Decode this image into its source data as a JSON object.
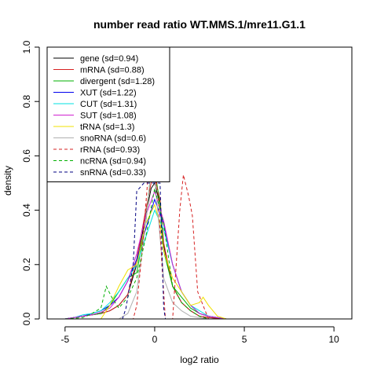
{
  "chart_data": {
    "type": "line",
    "title": "number read ratio WT.MMS.1/mre11.G1.1",
    "xlabel": "log2 ratio",
    "ylabel": "density",
    "xlim": [
      -6,
      11
    ],
    "ylim": [
      0,
      1.0
    ],
    "x_ticks": [
      -5,
      0,
      5,
      10
    ],
    "y_ticks": [
      0.0,
      0.2,
      0.4,
      0.6,
      0.8,
      1.0
    ],
    "grid": false,
    "legend_position": "top-left",
    "series": [
      {
        "name": "gene (sd=0.94)",
        "color": "#000000",
        "dash": "solid",
        "x": [
          -5.0,
          -4.0,
          -3.0,
          -2.5,
          -2.0,
          -1.5,
          -1.0,
          -0.5,
          -0.2,
          0.0,
          0.3,
          0.5,
          1.0,
          1.5,
          2.0,
          2.5,
          3.0,
          4.0,
          5.0,
          10.4
        ],
        "y": [
          0.0,
          0.01,
          0.02,
          0.03,
          0.05,
          0.09,
          0.2,
          0.38,
          0.48,
          0.5,
          0.42,
          0.27,
          0.12,
          0.06,
          0.03,
          0.01,
          0.005,
          0.0,
          0.0,
          0.0
        ]
      },
      {
        "name": "mRNA (sd=0.88)",
        "color": "#d62020",
        "dash": "solid",
        "x": [
          -5.0,
          -4.0,
          -3.0,
          -2.5,
          -2.0,
          -1.5,
          -1.0,
          -0.5,
          -0.2,
          0.0,
          0.3,
          0.5,
          1.0,
          1.5,
          2.0,
          2.5,
          3.0,
          4.0,
          5.0,
          10.4
        ],
        "y": [
          0.0,
          0.01,
          0.02,
          0.03,
          0.05,
          0.09,
          0.22,
          0.4,
          0.5,
          0.52,
          0.44,
          0.28,
          0.12,
          0.06,
          0.03,
          0.01,
          0.005,
          0.0,
          0.0,
          0.0
        ]
      },
      {
        "name": "divergent (sd=1.28)",
        "color": "#00b000",
        "dash": "solid",
        "x": [
          -5.0,
          -4.0,
          -3.0,
          -2.5,
          -2.0,
          -1.5,
          -1.0,
          -0.5,
          -0.2,
          0.0,
          0.3,
          0.5,
          1.0,
          1.5,
          2.0,
          2.5,
          3.0,
          4.0,
          5.0,
          10.4
        ],
        "y": [
          0.0,
          0.01,
          0.02,
          0.05,
          0.1,
          0.15,
          0.17,
          0.35,
          0.55,
          0.55,
          0.42,
          0.25,
          0.12,
          0.08,
          0.04,
          0.02,
          0.01,
          0.0,
          0.0,
          0.0
        ]
      },
      {
        "name": "XUT (sd=1.22)",
        "color": "#0000ee",
        "dash": "solid",
        "x": [
          -5.0,
          -4.5,
          -4.0,
          -3.5,
          -3.0,
          -2.5,
          -2.0,
          -1.5,
          -1.0,
          -0.5,
          0.0,
          0.5,
          1.0,
          1.5,
          2.0,
          2.5,
          3.0,
          3.5,
          4.0,
          5.0,
          10.4
        ],
        "y": [
          0.0,
          0.005,
          0.01,
          0.02,
          0.03,
          0.05,
          0.08,
          0.14,
          0.22,
          0.33,
          0.44,
          0.35,
          0.2,
          0.1,
          0.05,
          0.02,
          0.01,
          0.005,
          0.0,
          0.0,
          0.0
        ]
      },
      {
        "name": "CUT (sd=1.31)",
        "color": "#00e0e0",
        "dash": "solid",
        "x": [
          -5.0,
          -4.5,
          -4.0,
          -3.5,
          -3.0,
          -2.5,
          -2.0,
          -1.5,
          -1.0,
          -0.5,
          0.0,
          0.5,
          1.0,
          1.5,
          2.0,
          2.5,
          3.0,
          3.5,
          4.0,
          5.0,
          10.4
        ],
        "y": [
          0.0,
          0.005,
          0.015,
          0.02,
          0.03,
          0.06,
          0.1,
          0.15,
          0.2,
          0.3,
          0.4,
          0.33,
          0.2,
          0.1,
          0.05,
          0.03,
          0.01,
          0.005,
          0.0,
          0.0,
          0.0
        ]
      },
      {
        "name": "SUT (sd=1.08)",
        "color": "#d020d0",
        "dash": "solid",
        "x": [
          -5.0,
          -4.5,
          -4.0,
          -3.5,
          -3.0,
          -2.5,
          -2.0,
          -1.5,
          -1.0,
          -0.5,
          0.0,
          0.5,
          1.0,
          1.5,
          2.0,
          2.5,
          3.0,
          3.5,
          4.0,
          5.0,
          10.4
        ],
        "y": [
          0.0,
          0.005,
          0.01,
          0.015,
          0.025,
          0.04,
          0.08,
          0.14,
          0.24,
          0.38,
          0.47,
          0.36,
          0.2,
          0.1,
          0.05,
          0.02,
          0.01,
          0.005,
          0.0,
          0.0,
          0.0
        ]
      },
      {
        "name": "tRNA (sd=1.3)",
        "color": "#f0e000",
        "dash": "solid",
        "x": [
          -5.0,
          -3.0,
          -2.5,
          -2.0,
          -1.5,
          -1.0,
          -0.5,
          0.0,
          0.3,
          0.5,
          1.0,
          1.5,
          2.0,
          2.5,
          2.7,
          3.0,
          3.5,
          4.0,
          5.0,
          10.4
        ],
        "y": [
          0.0,
          0.0,
          0.05,
          0.12,
          0.18,
          0.2,
          0.35,
          0.42,
          0.35,
          0.25,
          0.15,
          0.1,
          0.05,
          0.06,
          0.08,
          0.05,
          0.01,
          0.0,
          0.0,
          0.0
        ]
      },
      {
        "name": "snoRNA (sd=0.6)",
        "color": "#b0b0b0",
        "dash": "solid",
        "x": [
          -5.0,
          -2.0,
          -1.5,
          -1.0,
          -0.5,
          -0.2,
          0.0,
          0.3,
          0.5,
          1.0,
          1.5,
          2.0,
          2.5,
          3.0,
          5.0,
          10.4
        ],
        "y": [
          0.0,
          0.0,
          0.02,
          0.1,
          0.35,
          0.55,
          0.52,
          0.3,
          0.15,
          0.06,
          0.03,
          0.01,
          0.005,
          0.0,
          0.0,
          0.0
        ]
      },
      {
        "name": "rRNA (sd=0.93)",
        "color": "#d62020",
        "dash": "dashed",
        "x": [
          -5.0,
          -1.2,
          -1.0,
          -0.7,
          -0.4,
          -0.2,
          0.0,
          0.2,
          0.4,
          0.6,
          1.0,
          1.4,
          1.6,
          1.9,
          2.1,
          2.4,
          3.0,
          5.0,
          10.4
        ],
        "y": [
          0.0,
          0.0,
          0.05,
          0.25,
          0.5,
          0.6,
          0.55,
          0.45,
          0.2,
          0.0,
          0.0,
          0.4,
          0.53,
          0.45,
          0.38,
          0.1,
          0.0,
          0.0,
          0.0
        ]
      },
      {
        "name": "ncRNA (sd=0.94)",
        "color": "#00b000",
        "dash": "dashed",
        "x": [
          -5.0,
          -4.0,
          -3.5,
          -3.0,
          -2.7,
          -2.4,
          -2.0,
          -1.5,
          -1.0,
          -0.5,
          0.0,
          0.5,
          1.0,
          1.5,
          2.0,
          2.5,
          3.0,
          4.0,
          10.4
        ],
        "y": [
          0.0,
          0.005,
          0.02,
          0.04,
          0.12,
          0.08,
          0.04,
          0.08,
          0.15,
          0.3,
          0.48,
          0.35,
          0.12,
          0.06,
          0.03,
          0.01,
          0.0,
          0.0,
          0.0
        ]
      },
      {
        "name": "snRNA (sd=0.33)",
        "color": "#000080",
        "dash": "dashed",
        "x": [
          -5.5,
          -1.8,
          -1.6,
          -1.2,
          -1.0,
          -0.6,
          -0.3,
          0.0,
          0.3,
          0.5,
          0.6,
          10.4
        ],
        "y": [
          0.0,
          0.0,
          0.04,
          0.2,
          0.47,
          0.5,
          0.5,
          0.5,
          0.5,
          0.04,
          0.0,
          0.0
        ]
      }
    ]
  }
}
